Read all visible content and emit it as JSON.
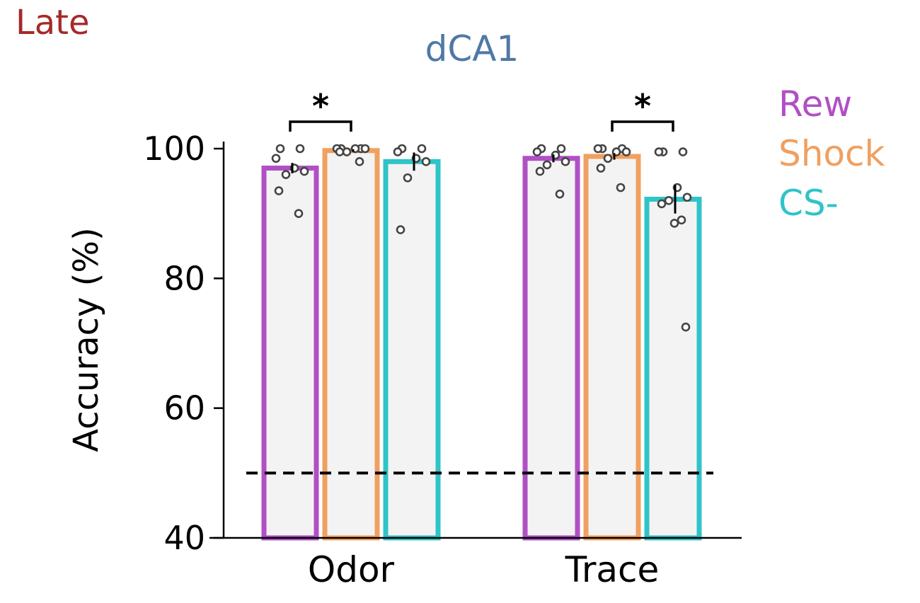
{
  "panel_label": "Late",
  "colors": {
    "panel_label": "#a52a2a",
    "title": "#4f79a6",
    "rew": "#b14fc5",
    "shock": "#f0a060",
    "cs_minus": "#2ec4c8",
    "bar_fill": "#f3f3f3",
    "points": "#444444",
    "axis": "#000000"
  },
  "chart_data": {
    "type": "bar",
    "title": "dCA1",
    "ylabel": "Accuracy (%)",
    "xlabel": "",
    "ylim": [
      40,
      100
    ],
    "yticks": [
      40,
      60,
      80,
      100
    ],
    "categories": [
      "Odor",
      "Trace"
    ],
    "chance_level": 50,
    "legend_position": "right",
    "series": [
      {
        "name": "Rew",
        "color_key": "rew",
        "values": [
          97,
          98.5
        ],
        "sem": [
          0.8,
          0.6
        ],
        "points": [
          [
            100,
            100,
            98.5,
            97,
            96.5,
            96,
            93.5,
            90
          ],
          [
            100,
            100,
            99.5,
            99,
            98,
            97.5,
            96.5,
            93
          ]
        ]
      },
      {
        "name": "Shock",
        "color_key": "shock",
        "values": [
          99.7,
          98.8
        ],
        "sem": [
          0.2,
          0.5
        ],
        "points": [
          [
            100,
            100,
            100,
            100,
            100,
            99.5,
            99.5,
            98
          ],
          [
            100,
            100,
            100,
            99.5,
            99.5,
            98.5,
            97,
            94
          ]
        ]
      },
      {
        "name": "CS-",
        "color_key": "cs_minus",
        "values": [
          98,
          92.2
        ],
        "sem": [
          1.4,
          2.2
        ],
        "points": [
          [
            100,
            100,
            99.5,
            98.5,
            98,
            95.5,
            87.5
          ],
          [
            99.5,
            99.5,
            99.5,
            94,
            92.5,
            92,
            91.5,
            89,
            88.5,
            72.5
          ]
        ]
      }
    ],
    "significance": [
      {
        "category": "Odor",
        "from": "Rew",
        "to": "Shock",
        "label": "*"
      },
      {
        "category": "Trace",
        "from": "Shock",
        "to": "CS-",
        "label": "*"
      }
    ]
  }
}
